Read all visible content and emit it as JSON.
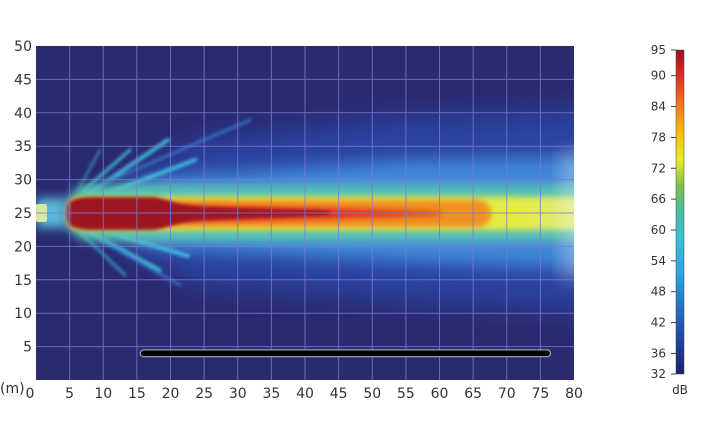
{
  "chart_data": {
    "type": "heatmap",
    "title": "",
    "x_unit_label": "(m)",
    "xlim": [
      0,
      80
    ],
    "ylim": [
      0,
      50
    ],
    "x_ticks": [
      0,
      5,
      10,
      15,
      20,
      25,
      30,
      35,
      40,
      45,
      50,
      55,
      60,
      65,
      70,
      75,
      80
    ],
    "y_ticks": [
      5,
      10,
      15,
      20,
      25,
      30,
      35,
      40,
      45,
      50
    ],
    "grid": true,
    "background_color": "#2a2a70",
    "source": {
      "x": 0,
      "y": 25
    },
    "plume": {
      "direction": "+x",
      "center_y": 25,
      "peak_zone_x": [
        5,
        43
      ],
      "orange_zone_x": [
        5,
        67
      ],
      "yellow_zone_y": [
        22.5,
        27.5
      ]
    },
    "barrier_line": {
      "x": [
        16,
        76
      ],
      "y": 4,
      "color": "#000000"
    },
    "colorbar": {
      "label": "dB",
      "min": 32,
      "max": 95,
      "ticks": [
        95,
        90,
        84,
        78,
        72,
        66,
        60,
        54,
        48,
        42,
        36,
        32
      ],
      "colormap": "jet",
      "placement": "right"
    }
  }
}
